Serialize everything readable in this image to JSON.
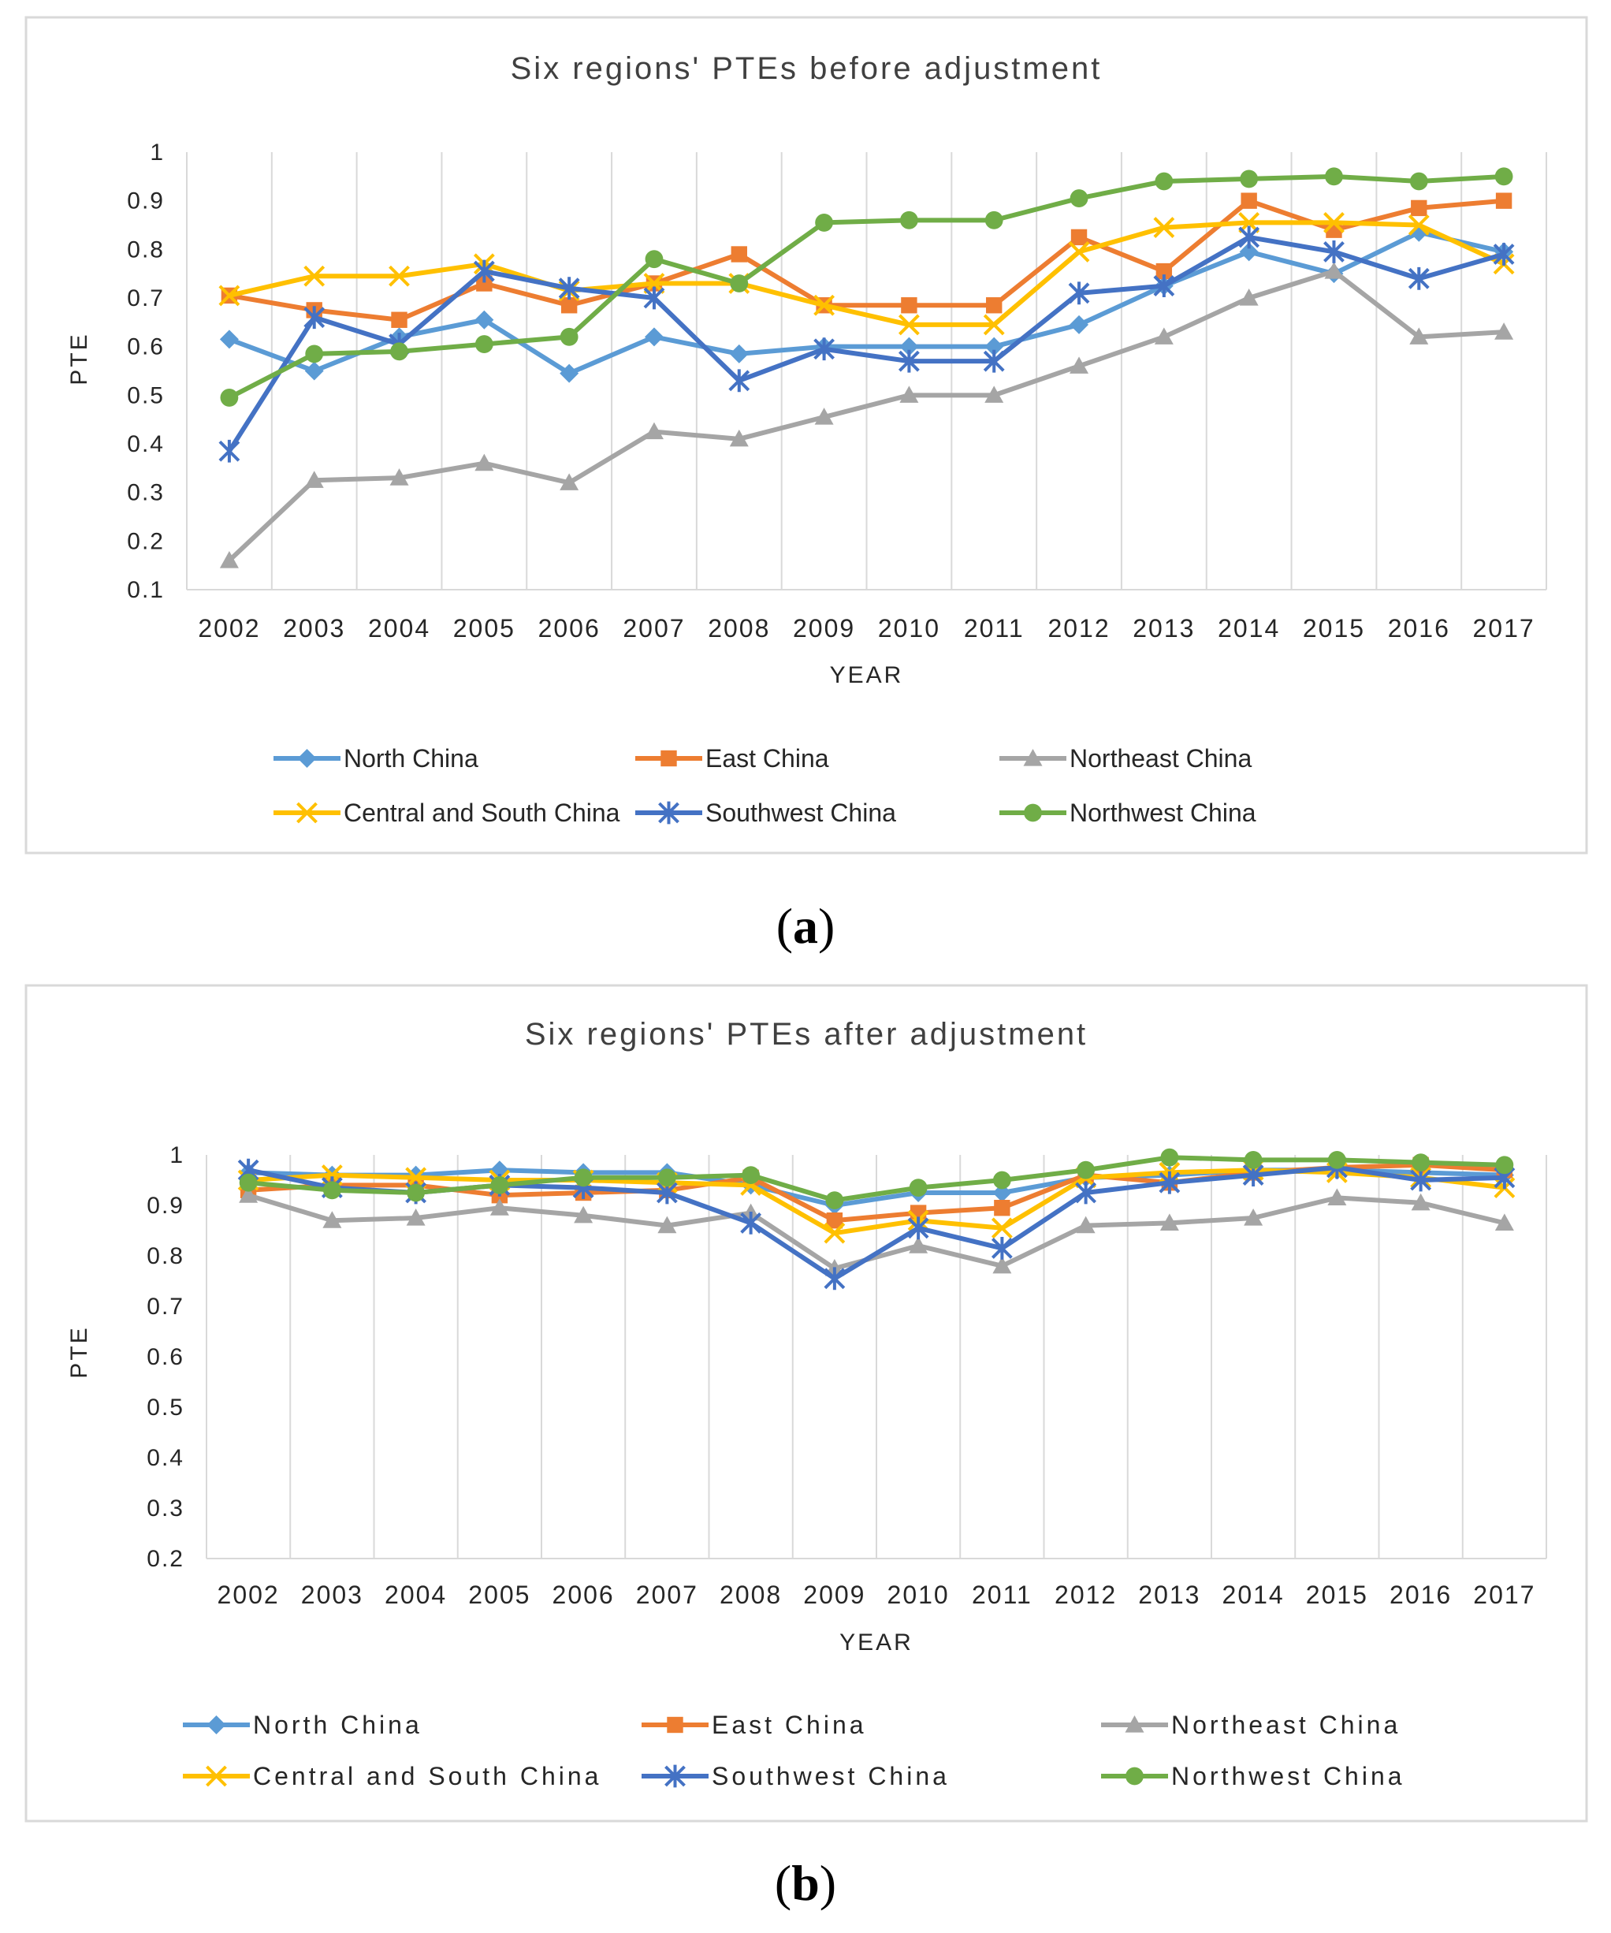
{
  "chart_data": [
    {
      "type": "line",
      "title": "Six regions' PTEs before adjustment",
      "xlabel": "YEAR",
      "ylabel": "PTE",
      "ylim": [
        0.1,
        1
      ],
      "yticks": [
        "0.1",
        "0.2",
        "0.3",
        "0.4",
        "0.5",
        "0.6",
        "0.7",
        "0.8",
        "0.9",
        "1"
      ],
      "categories": [
        "2002",
        "2003",
        "2004",
        "2005",
        "2006",
        "2007",
        "2008",
        "2009",
        "2010",
        "2011",
        "2012",
        "2013",
        "2014",
        "2015",
        "2016",
        "2017"
      ],
      "grid": "vertical",
      "legend_position": "bottom",
      "series": [
        {
          "name": "North China",
          "color": "#5B9BD5",
          "marker": "diamond",
          "values": [
            0.615,
            0.55,
            0.62,
            0.655,
            0.545,
            0.62,
            0.585,
            0.6,
            0.6,
            0.6,
            0.645,
            0.725,
            0.795,
            0.75,
            0.835,
            0.795
          ]
        },
        {
          "name": "East China",
          "color": "#ED7D31",
          "marker": "square",
          "values": [
            0.705,
            0.675,
            0.655,
            0.73,
            0.685,
            0.73,
            0.79,
            0.685,
            0.685,
            0.685,
            0.825,
            0.755,
            0.9,
            0.84,
            0.885,
            0.9
          ]
        },
        {
          "name": "Northeast China",
          "color": "#A5A5A5",
          "marker": "triangle",
          "values": [
            0.16,
            0.325,
            0.33,
            0.36,
            0.32,
            0.425,
            0.41,
            0.455,
            0.5,
            0.5,
            0.56,
            0.62,
            0.7,
            0.755,
            0.62,
            0.63
          ]
        },
        {
          "name": "Central and South China",
          "color": "#FFC000",
          "marker": "x",
          "values": [
            0.705,
            0.745,
            0.745,
            0.77,
            0.715,
            0.73,
            0.73,
            0.685,
            0.645,
            0.645,
            0.795,
            0.845,
            0.855,
            0.855,
            0.85,
            0.77
          ]
        },
        {
          "name": "Southwest China",
          "color": "#4472C4",
          "marker": "star",
          "values": [
            0.385,
            0.66,
            0.605,
            0.755,
            0.72,
            0.7,
            0.53,
            0.595,
            0.57,
            0.57,
            0.71,
            0.725,
            0.825,
            0.795,
            0.74,
            0.79
          ]
        },
        {
          "name": "Northwest China",
          "color": "#70AD47",
          "marker": "circle",
          "values": [
            0.495,
            0.585,
            0.59,
            0.605,
            0.62,
            0.78,
            0.73,
            0.855,
            0.86,
            0.86,
            0.905,
            0.94,
            0.945,
            0.95,
            0.94,
            0.95
          ]
        }
      ]
    },
    {
      "type": "line",
      "title": "Six regions' PTEs after adjustment",
      "xlabel": "YEAR",
      "ylabel": "PTE",
      "ylim": [
        0.2,
        1
      ],
      "yticks": [
        "0.2",
        "0.3",
        "0.4",
        "0.5",
        "0.6",
        "0.7",
        "0.8",
        "0.9",
        "1"
      ],
      "categories": [
        "2002",
        "2003",
        "2004",
        "2005",
        "2006",
        "2007",
        "2008",
        "2009",
        "2010",
        "2011",
        "2012",
        "2013",
        "2014",
        "2015",
        "2016",
        "2017"
      ],
      "grid": "vertical",
      "legend_position": "bottom",
      "series": [
        {
          "name": "North China",
          "color": "#5B9BD5",
          "marker": "diamond",
          "values": [
            0.965,
            0.96,
            0.96,
            0.97,
            0.965,
            0.965,
            0.94,
            0.9,
            0.925,
            0.925,
            0.955,
            0.96,
            0.97,
            0.97,
            0.965,
            0.96
          ]
        },
        {
          "name": "East China",
          "color": "#ED7D31",
          "marker": "square",
          "values": [
            0.93,
            0.94,
            0.94,
            0.92,
            0.925,
            0.93,
            0.955,
            0.87,
            0.885,
            0.895,
            0.96,
            0.945,
            0.965,
            0.975,
            0.98,
            0.97
          ]
        },
        {
          "name": "Northeast China",
          "color": "#A5A5A5",
          "marker": "triangle",
          "values": [
            0.92,
            0.87,
            0.875,
            0.895,
            0.88,
            0.86,
            0.885,
            0.775,
            0.82,
            0.78,
            0.86,
            0.865,
            0.875,
            0.915,
            0.905,
            0.865
          ]
        },
        {
          "name": "Central and South China",
          "color": "#FFC000",
          "marker": "x",
          "values": [
            0.95,
            0.96,
            0.955,
            0.95,
            0.95,
            0.945,
            0.94,
            0.845,
            0.87,
            0.855,
            0.955,
            0.965,
            0.97,
            0.965,
            0.955,
            0.935
          ]
        },
        {
          "name": "Southwest China",
          "color": "#4472C4",
          "marker": "star",
          "values": [
            0.97,
            0.935,
            0.925,
            0.94,
            0.935,
            0.925,
            0.865,
            0.755,
            0.855,
            0.815,
            0.925,
            0.945,
            0.96,
            0.975,
            0.95,
            0.955
          ]
        },
        {
          "name": "Northwest China",
          "color": "#70AD47",
          "marker": "circle",
          "values": [
            0.945,
            0.93,
            0.925,
            0.94,
            0.955,
            0.955,
            0.96,
            0.91,
            0.935,
            0.95,
            0.97,
            0.995,
            0.99,
            0.99,
            0.985,
            0.98
          ]
        }
      ]
    }
  ],
  "captions": [
    "a",
    "b"
  ]
}
